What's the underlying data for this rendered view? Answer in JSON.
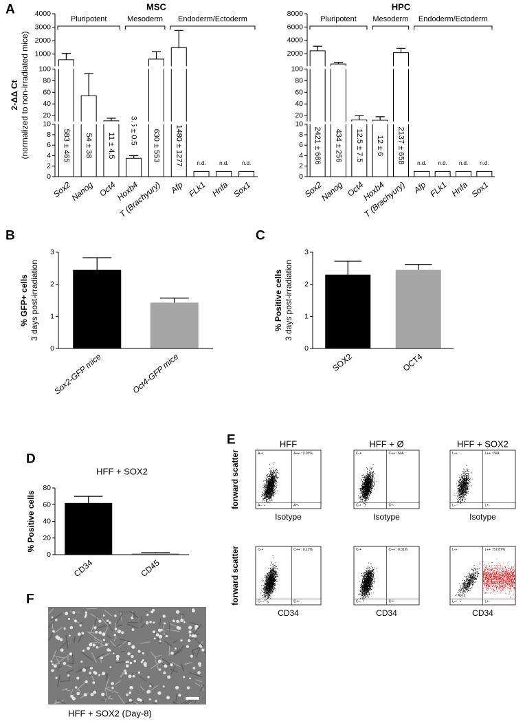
{
  "panel_labels": [
    "A",
    "B",
    "C",
    "D",
    "E",
    "F"
  ],
  "chart_data": [
    {
      "type": "bar",
      "title": "MSC",
      "ylabel": [
        "2-ΔΔ Ct",
        "(normalized to non-irradiated mice)"
      ],
      "categories": [
        "Sox2",
        "Nanog",
        "Oct4",
        "Hoxb4",
        "T (Brachyury)",
        "Afp",
        "FLk1",
        "Hnfa",
        "Sox1"
      ],
      "category_style": "italic",
      "values": [
        583,
        54,
        11,
        3.5,
        630,
        1480,
        1,
        1,
        1
      ],
      "errors": [
        465,
        38,
        4.5,
        0.5,
        553,
        1277,
        null,
        null,
        null
      ],
      "value_labels": [
        "583 ± 465",
        "54 ± 38",
        "11 ± 4.5",
        "3.5 ± 0.5",
        "630 ± 553",
        "1480 ± 1277",
        "n.d.",
        "n.d.",
        "n.d."
      ],
      "color": "#ffffff",
      "edge_color": "#000000",
      "ylim": [
        0,
        4000
      ],
      "y_breaks": [
        10,
        100
      ],
      "yticks": [
        0,
        2,
        4,
        6,
        8,
        10,
        20,
        40,
        60,
        80,
        100,
        1000,
        2000,
        3000,
        4000
      ],
      "groups": [
        {
          "label": "Pluripotent",
          "categories": [
            "Sox2",
            "Nanog",
            "Oct4"
          ]
        },
        {
          "label": "Mesoderm",
          "categories": [
            "Hoxb4",
            "T (Brachyury)"
          ]
        },
        {
          "label": "Endoderm/Ectoderm",
          "categories": [
            "Afp",
            "FLk1",
            "Hnfa",
            "Sox1"
          ]
        }
      ]
    },
    {
      "type": "bar",
      "title": "HPC",
      "categories": [
        "Sox2",
        "Nanog",
        "Oct4",
        "Hoxb4",
        "T (Brachyury)",
        "Afp",
        "FLk1",
        "Hnfa",
        "Sox1"
      ],
      "category_style": "italic",
      "values": [
        2421,
        434,
        12.5,
        12,
        2137,
        1,
        1,
        1,
        1
      ],
      "errors": [
        686,
        256,
        7.5,
        6,
        658,
        null,
        null,
        null,
        null
      ],
      "value_labels": [
        "2421 ± 686",
        "434 ± 256",
        "12.5 ± 7.5",
        "12 ± 6",
        "2137 ± 658",
        "n.d.",
        "n.d.",
        "n.d.",
        "n.d."
      ],
      "color": "#ffffff",
      "edge_color": "#000000",
      "ylim": [
        0,
        8000
      ],
      "y_breaks": [
        10,
        100
      ],
      "yticks": [
        0,
        2,
        4,
        6,
        8,
        10,
        20,
        40,
        60,
        80,
        100,
        2000,
        4000,
        6000,
        8000
      ],
      "groups": [
        {
          "label": "Pluripotent",
          "categories": [
            "Sox2",
            "Nanog",
            "Oct4"
          ]
        },
        {
          "label": "Mesoderm",
          "categories": [
            "Hoxb4",
            "T (Brachyury)"
          ]
        },
        {
          "label": "Endoderm/Ectoderm",
          "categories": [
            "Afp",
            "FLk1",
            "Hnfa",
            "Sox1"
          ]
        }
      ]
    },
    {
      "type": "bar",
      "ylabel": [
        "% GFP+ cells",
        "3 days post-irradiation"
      ],
      "categories": [
        "Sox2-GFP mice",
        "Oct4-GFP mice"
      ],
      "category_style": "italic",
      "values": [
        2.45,
        1.43
      ],
      "errors": [
        0.38,
        0.14
      ],
      "colors": [
        "#000000",
        "#a6a6a6"
      ],
      "ylim": [
        0,
        3
      ],
      "yticks": [
        0,
        1,
        2,
        3
      ]
    },
    {
      "type": "bar",
      "ylabel": [
        "% Positive cells",
        "3 days post-irradiation"
      ],
      "categories": [
        "SOX2",
        "OCT4"
      ],
      "values": [
        2.3,
        2.45
      ],
      "errors": [
        0.42,
        0.17
      ],
      "colors": [
        "#000000",
        "#a6a6a6"
      ],
      "ylim": [
        0,
        3
      ],
      "yticks": [
        0,
        1,
        2,
        3
      ]
    },
    {
      "type": "bar",
      "title": "HFF + SOX2",
      "ylabel": [
        "% Positive cells"
      ],
      "categories": [
        "CD34",
        "CD45"
      ],
      "values": [
        62,
        1.5
      ],
      "errors": [
        8,
        1
      ],
      "colors": [
        "#000000",
        "#a6a6a6"
      ],
      "ylim": [
        0,
        80
      ],
      "yticks": [
        0,
        20,
        40,
        60,
        80
      ]
    }
  ],
  "flow": {
    "columns": [
      "HFF",
      "HFF + Ø",
      "HFF + SOX2"
    ],
    "row_labels": [
      "forward scatter",
      "forward scatter"
    ],
    "x_labels": [
      "Isotype",
      "CD34"
    ],
    "plots": [
      {
        "quadrants": [
          "A-+",
          "A++ : 0.03%",
          "A--",
          "A+-"
        ]
      },
      {
        "quadrants": [
          "C-+",
          "C++ : N/A",
          "C--",
          "C+-"
        ]
      },
      {
        "quadrants": [
          "L-+",
          "L++ : N/A",
          "L--",
          "L+-"
        ]
      },
      {
        "quadrants": [
          "C-+",
          "C++ : 0.11%",
          "C--",
          "C+-"
        ]
      },
      {
        "quadrants": [
          "C-+",
          "C++ : 0.01%",
          "C--",
          "C+-"
        ]
      },
      {
        "quadrants": [
          "L-+",
          "L++ : 57.87%",
          "L--",
          "L+-"
        ]
      }
    ]
  },
  "micrograph": {
    "caption": "HFF + SOX2 (Day-8)"
  }
}
